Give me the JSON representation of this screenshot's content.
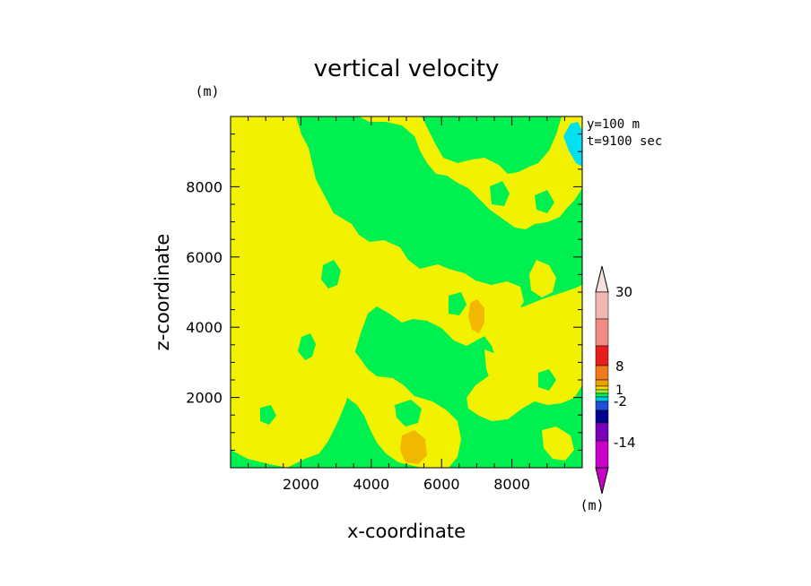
{
  "chart_data": {
    "type": "heatmap",
    "title": "vertical velocity",
    "xlabel": "x-coordinate",
    "ylabel": "z-coordinate",
    "unit_label": "(m)",
    "colorbar_unit_label": "(m)",
    "annotations": [
      "y=100 m",
      "t=9100 sec"
    ],
    "xlim": [
      0,
      10000
    ],
    "ylim": [
      0,
      10000
    ],
    "xticks": [
      2000,
      4000,
      6000,
      8000
    ],
    "yticks": [
      2000,
      4000,
      6000,
      8000
    ],
    "xtick_labels": [
      "2000",
      "4000",
      "6000",
      "8000"
    ],
    "ytick_labels": [
      "2000",
      "4000",
      "6000",
      "8000"
    ],
    "background_level": "-2 to 1",
    "colorbar": {
      "labels": [
        "30",
        "8",
        "1",
        "-2",
        "-14"
      ],
      "colors": [
        "#f0b8b0",
        "#f08a84",
        "#e81e1e",
        "#f07a1e",
        "#f0a000",
        "#f0e000",
        "#a8e840",
        "#00f050",
        "#00c8e8",
        "#1e50d8",
        "#000090",
        "#7800b8",
        "#c800c8"
      ]
    }
  },
  "colors": {
    "green": "#00f050",
    "yellow": "#f2f200",
    "orange": "#f2b800",
    "cyan": "#00e0f0"
  }
}
